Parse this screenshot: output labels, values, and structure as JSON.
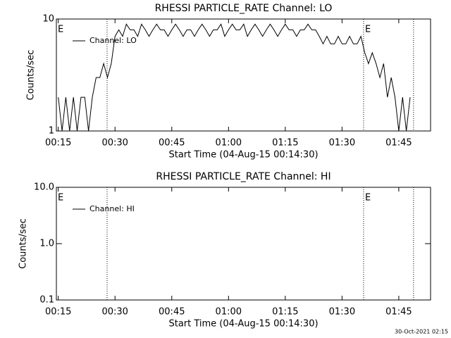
{
  "footer": "30-Oct-2021 02:15",
  "chart_data": [
    {
      "type": "line",
      "title": "RHESSI PARTICLE_RATE Channel: LO",
      "xlabel": "Start Time (04-Aug-15 00:14:30)",
      "ylabel": "Counts/sec",
      "x": [
        15,
        16,
        17,
        18,
        19,
        20,
        21,
        22,
        23,
        24,
        25,
        26,
        27,
        28,
        29,
        30,
        31,
        32,
        33,
        34,
        35,
        36,
        37,
        38,
        39,
        40,
        41,
        42,
        43,
        44,
        45,
        46,
        47,
        48,
        49,
        50,
        51,
        52,
        53,
        54,
        55,
        56,
        57,
        58,
        59,
        60,
        61,
        62,
        63,
        64,
        65,
        66,
        67,
        68,
        69,
        70,
        71,
        72,
        73,
        74,
        75,
        76,
        77,
        78,
        79,
        80,
        81,
        82,
        83,
        84,
        85,
        86,
        87,
        88,
        89,
        90,
        91,
        92,
        93,
        94,
        95,
        96,
        97,
        98,
        99,
        100,
        101,
        102,
        103,
        104,
        105,
        106,
        107,
        108
      ],
      "series": [
        {
          "name": "Channel: LO",
          "color": "#000000",
          "values": [
            2,
            1,
            2,
            1,
            2,
            1,
            2,
            2,
            1,
            2,
            3,
            3,
            4,
            3,
            4,
            7,
            8,
            7,
            9,
            8,
            8,
            7,
            9,
            8,
            7,
            8,
            9,
            8,
            8,
            7,
            8,
            9,
            8,
            7,
            8,
            8,
            7,
            8,
            9,
            8,
            7,
            8,
            8,
            9,
            7,
            8,
            9,
            8,
            8,
            9,
            7,
            8,
            9,
            8,
            7,
            8,
            9,
            8,
            7,
            8,
            9,
            8,
            8,
            7,
            8,
            8,
            9,
            8,
            8,
            7,
            6,
            7,
            6,
            6,
            7,
            6,
            6,
            7,
            6,
            6,
            7,
            5,
            4,
            5,
            4,
            3,
            4,
            2,
            3,
            2,
            1,
            2,
            1,
            2
          ]
        }
      ],
      "xlim": [
        14.5,
        113.4
      ],
      "ylim": [
        1,
        10
      ],
      "log_y": true,
      "xticks": [
        {
          "value": 15,
          "label": "00:15"
        },
        {
          "value": 30,
          "label": "00:30"
        },
        {
          "value": 45,
          "label": "00:45"
        },
        {
          "value": 60,
          "label": "01:00"
        },
        {
          "value": 75,
          "label": "01:15"
        },
        {
          "value": 90,
          "label": "01:30"
        },
        {
          "value": 105,
          "label": "01:45"
        }
      ],
      "yticks": [
        1,
        10
      ],
      "vlines": [
        27.9,
        95.7,
        108.9
      ],
      "annotations": [
        {
          "text": "E",
          "x": 14.5
        },
        {
          "text": "E",
          "x": 95.7
        }
      ],
      "legend": "upper left"
    },
    {
      "type": "line",
      "title": "RHESSI PARTICLE_RATE Channel: HI",
      "xlabel": "Start Time (04-Aug-15 00:14:30)",
      "ylabel": "Counts/sec",
      "x": [],
      "series": [
        {
          "name": "Channel: HI",
          "color": "#000000",
          "values": []
        }
      ],
      "xlim": [
        14.5,
        113.4
      ],
      "ylim": [
        0.1,
        10
      ],
      "log_y": true,
      "xticks": [
        {
          "value": 15,
          "label": "00:15"
        },
        {
          "value": 30,
          "label": "00:30"
        },
        {
          "value": 45,
          "label": "00:45"
        },
        {
          "value": 60,
          "label": "01:00"
        },
        {
          "value": 75,
          "label": "01:15"
        },
        {
          "value": 90,
          "label": "01:30"
        },
        {
          "value": 105,
          "label": "01:45"
        }
      ],
      "yticks": [
        {
          "value": 0.1,
          "label": "0.1"
        },
        {
          "value": 1,
          "label": "1.0"
        },
        {
          "value": 10,
          "label": "10.0"
        }
      ],
      "vlines": [
        27.9,
        95.7,
        108.9
      ],
      "annotations": [
        {
          "text": "E",
          "x": 14.5
        },
        {
          "text": "E",
          "x": 95.7
        }
      ],
      "legend": "upper left"
    }
  ]
}
